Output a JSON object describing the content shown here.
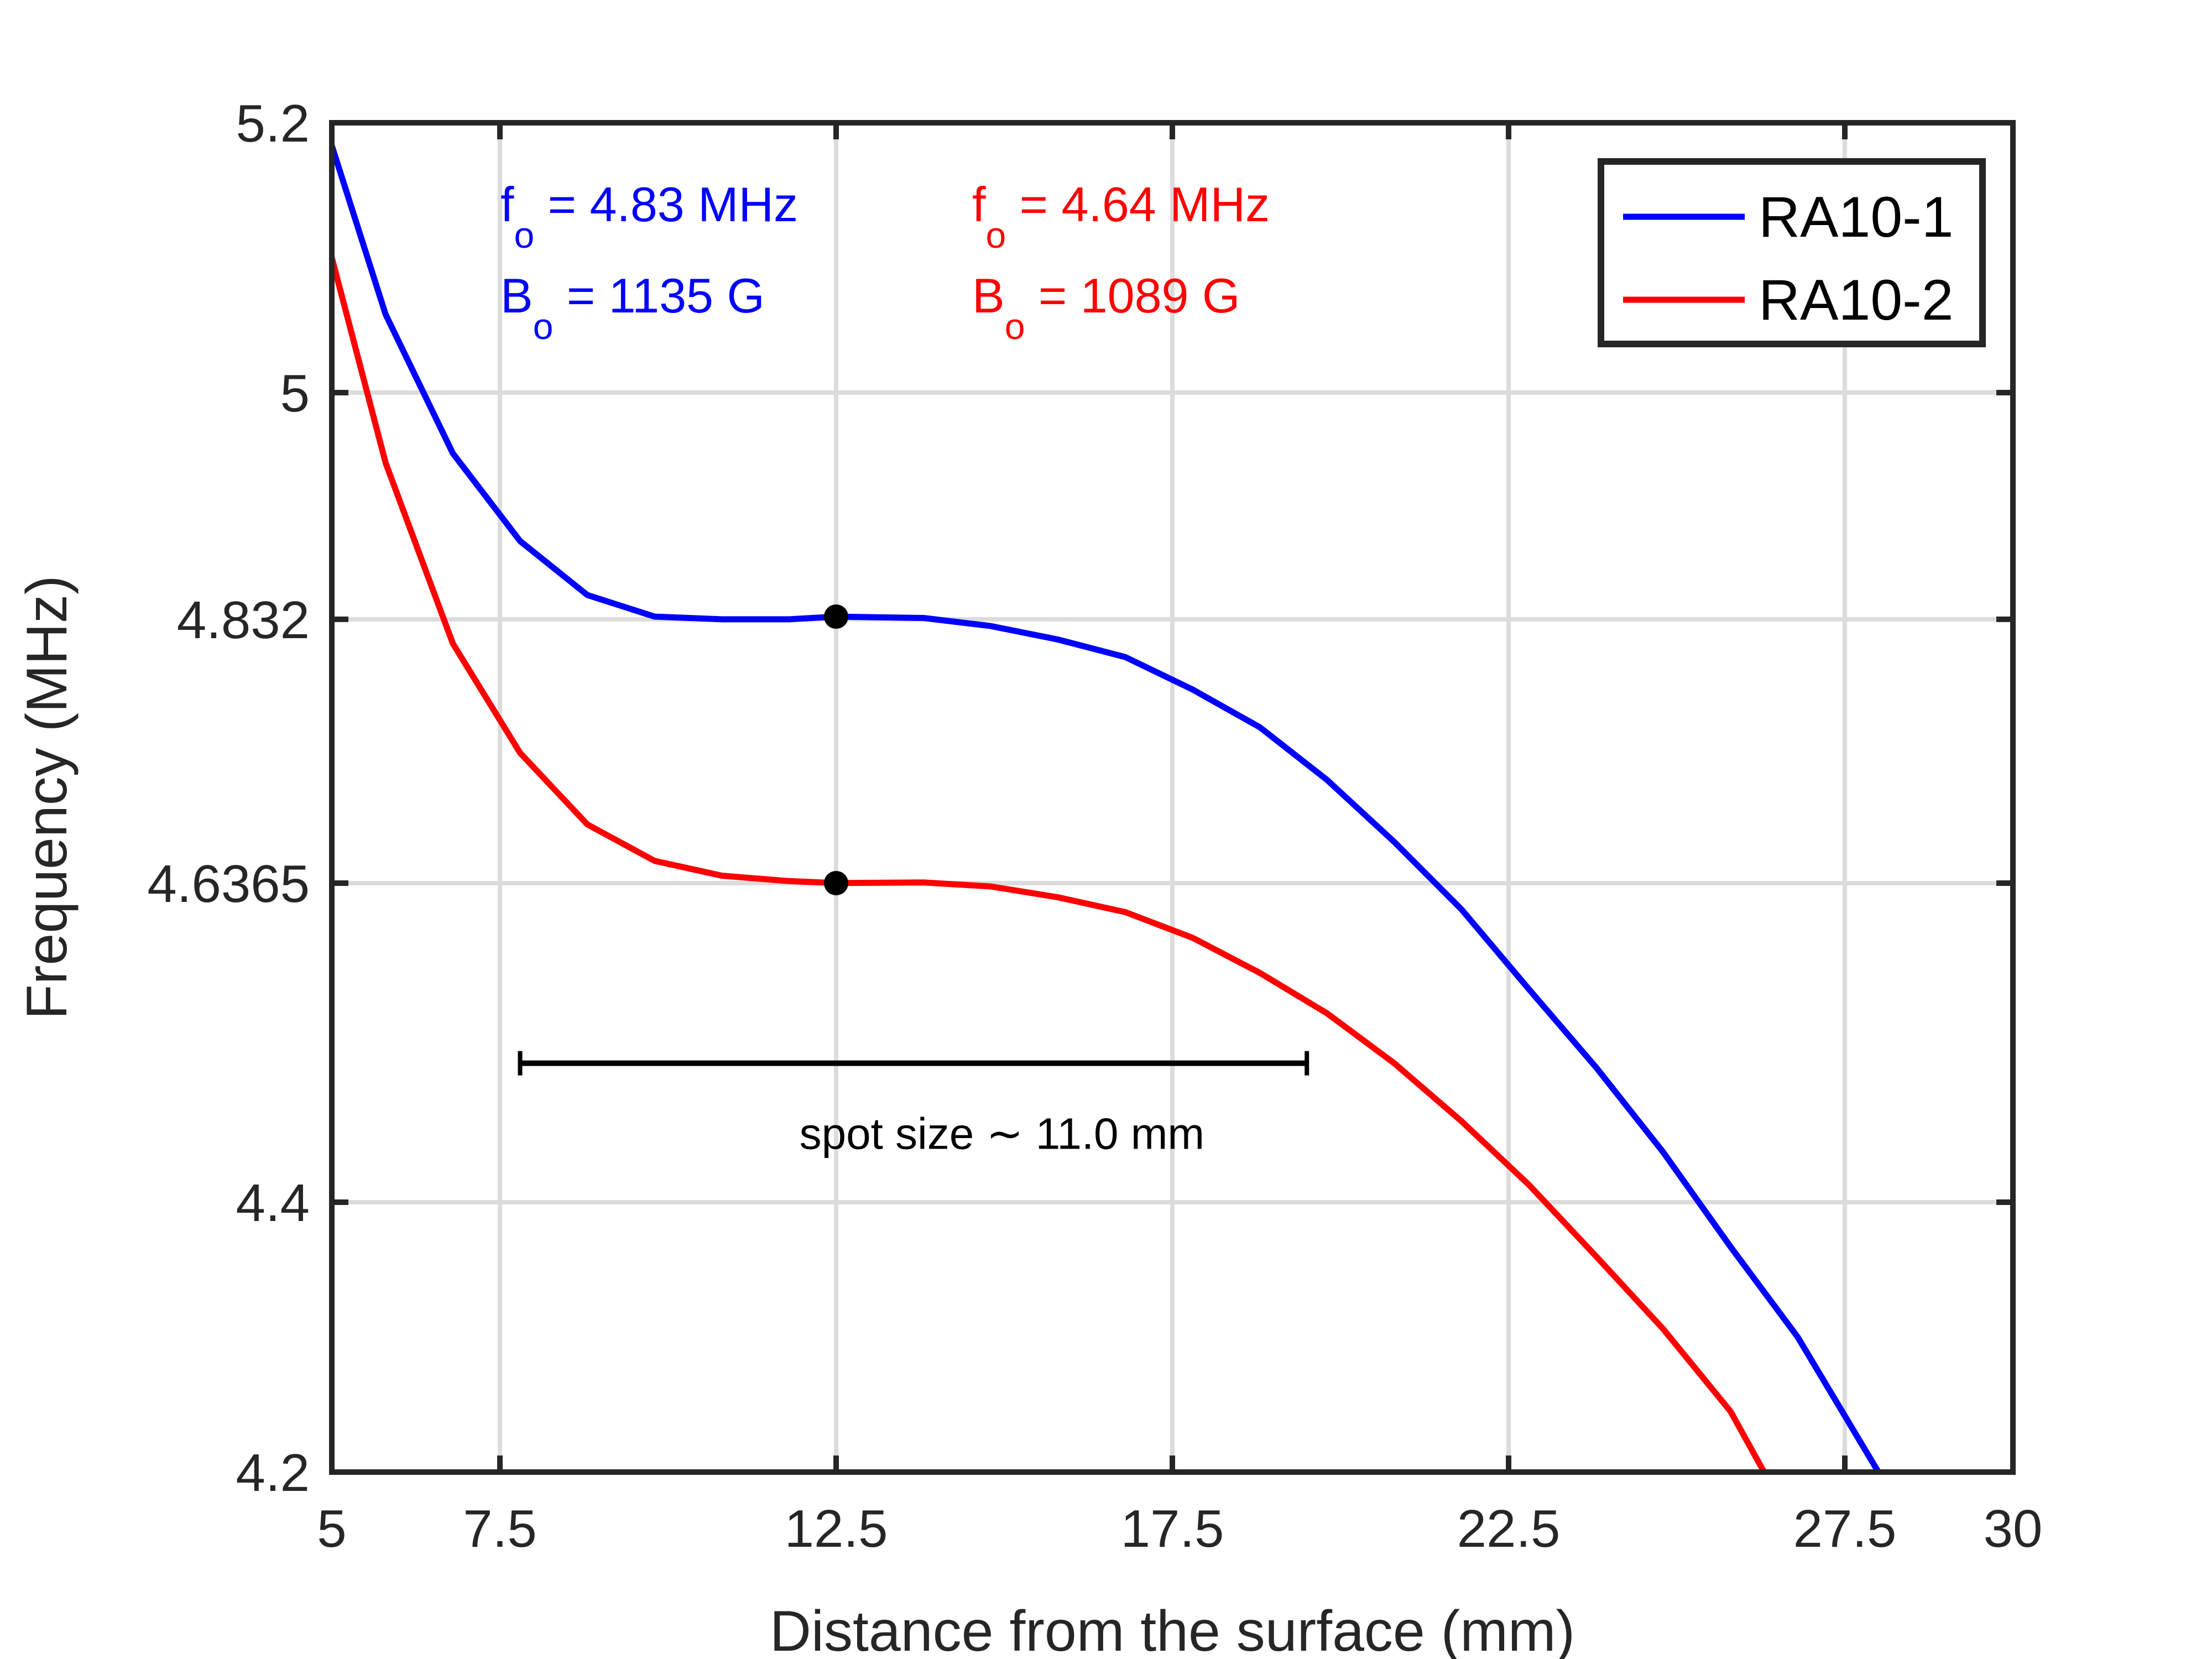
{
  "chart_data": {
    "type": "line",
    "xlabel": "Distance from the surface (mm)",
    "ylabel": "Frequency (MHz)",
    "xlim": [
      5,
      30
    ],
    "ylim": [
      4.2,
      5.2
    ],
    "xticks": [
      5,
      7.5,
      12.5,
      17.5,
      22.5,
      27.5,
      30
    ],
    "xtick_labels": [
      "5",
      "7.5",
      "12.5",
      "17.5",
      "22.5",
      "27.5",
      "30"
    ],
    "yticks": [
      4.2,
      4.4,
      4.6365,
      4.832,
      5,
      5.2
    ],
    "ytick_labels": [
      "4.2",
      "4.4",
      "4.6365",
      "4.832",
      "5",
      "5.2"
    ],
    "grid": true,
    "legend_position": "top-right",
    "series": [
      {
        "name": "RA10-1",
        "color": "#0000ff",
        "x": [
          5,
          5.8,
          6.8,
          7.8,
          8.8,
          9.8,
          10.8,
          11.8,
          12.5,
          13.8,
          14.8,
          15.8,
          16.8,
          17.8,
          18.8,
          19.8,
          20.8,
          21.8,
          22.8,
          23.8,
          24.8,
          25.8,
          26.8,
          28
        ],
        "y": [
          5.183,
          5.058,
          4.955,
          4.89,
          4.85,
          4.834,
          4.832,
          4.832,
          4.834,
          4.833,
          4.827,
          4.817,
          4.804,
          4.78,
          4.752,
          4.713,
          4.667,
          4.617,
          4.558,
          4.5,
          4.437,
          4.367,
          4.3,
          4.2
        ]
      },
      {
        "name": "RA10-2",
        "color": "#ff0000",
        "x": [
          5,
          5.8,
          6.8,
          7.8,
          8.8,
          9.8,
          10.8,
          11.8,
          12.5,
          13.8,
          14.8,
          15.8,
          16.8,
          17.8,
          18.8,
          19.8,
          20.8,
          21.8,
          22.8,
          23.8,
          24.8,
          25.8,
          26.3
        ],
        "y": [
          5.1,
          4.948,
          4.814,
          4.733,
          4.68,
          4.653,
          4.642,
          4.638,
          4.6365,
          4.637,
          4.634,
          4.626,
          4.615,
          4.596,
          4.57,
          4.54,
          4.503,
          4.46,
          4.413,
          4.36,
          4.306,
          4.245,
          4.2
        ]
      }
    ],
    "markers": [
      {
        "x": 12.5,
        "y": 4.834,
        "color": "#000000"
      },
      {
        "x": 12.5,
        "y": 4.6365,
        "color": "#000000"
      }
    ],
    "annotations": [
      {
        "symbol": "f",
        "sub": "o",
        "text": " = 4.83 MHz",
        "color": "#0000ff"
      },
      {
        "symbol": "B",
        "sub": "o",
        "text": " = 1135 G",
        "color": "#0000ff"
      },
      {
        "symbol": "f",
        "sub": "o",
        "text": " = 4.64 MHz",
        "color": "#ff0000"
      },
      {
        "symbol": "B",
        "sub": "o",
        "text": " = 1089 G",
        "color": "#ff0000"
      }
    ],
    "spot_bar": {
      "x_start": 7.8,
      "x_end": 19.5,
      "y": 4.503,
      "label": "spot size ∼ 11.0 mm"
    }
  }
}
